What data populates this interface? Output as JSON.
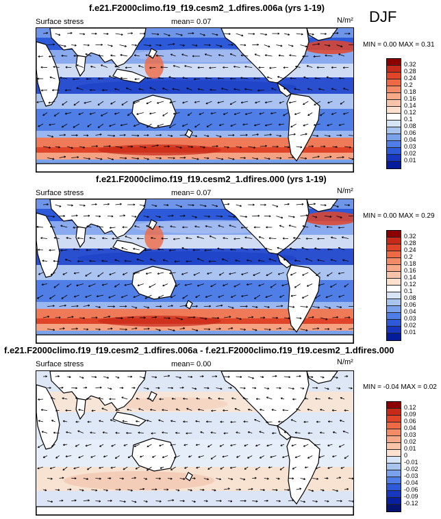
{
  "season": "DJF",
  "panels": [
    {
      "id": "a",
      "title": "f.e21.F2000climo.f19_f19.cesm2_1.dfires.006a (yrs 1-19)",
      "field": "Surface stress",
      "mean_label": "mean=",
      "mean": "0.07",
      "units": "N/m²",
      "min_label": "MIN =",
      "min": "0.00",
      "max_label": "MAX =",
      "max": "0.31",
      "levels": [
        "0.32",
        "0.28",
        "0.24",
        "0.2",
        "0.18",
        "0.16",
        "0.14",
        "0.12",
        "0.1",
        "0.08",
        "0.06",
        "0.04",
        "0.03",
        "0.02",
        "0.01"
      ],
      "colors": [
        "#8b0000",
        "#c72a18",
        "#e0452a",
        "#ee6a45",
        "#f38b66",
        "#f7a988",
        "#fac4aa",
        "#fde0cd",
        "#ffffff",
        "#d7e4f5",
        "#a8c3ee",
        "#7aa2ea",
        "#4f7fe6",
        "#2d5ad8",
        "#1737c0",
        "#051c9a"
      ]
    },
    {
      "id": "b",
      "title": "f.e21.F2000climo.f19_f19.cesm2_1.dfires.000 (yrs 1-19)",
      "field": "Surface stress",
      "mean_label": "mean=",
      "mean": "0.07",
      "units": "N/m²",
      "min_label": "MIN =",
      "min": "0.00",
      "max_label": "MAX =",
      "max": "0.29",
      "levels": [
        "0.32",
        "0.28",
        "0.24",
        "0.2",
        "0.18",
        "0.16",
        "0.14",
        "0.12",
        "0.1",
        "0.08",
        "0.06",
        "0.04",
        "0.03",
        "0.02",
        "0.01"
      ],
      "colors": [
        "#8b0000",
        "#c72a18",
        "#e0452a",
        "#ee6a45",
        "#f38b66",
        "#f7a988",
        "#fac4aa",
        "#fde0cd",
        "#ffffff",
        "#d7e4f5",
        "#a8c3ee",
        "#7aa2ea",
        "#4f7fe6",
        "#2d5ad8",
        "#1737c0",
        "#051c9a"
      ]
    },
    {
      "id": "diff",
      "title": "f.e21.F2000climo.f19_f19.cesm2_1.dfires.006a - f.e21.F2000climo.f19_f19.cesm2_1.dfires.000",
      "field": "Surface stress",
      "mean_label": "mean=",
      "mean": "0.00",
      "units": "N/m²",
      "min_label": "MIN =",
      "min": "-0.04",
      "max_label": "MAX =",
      "max": "0.02",
      "levels": [
        "0.12",
        "0.09",
        "0.06",
        "0.04",
        "0.03",
        "0.02",
        "0.01",
        "0",
        "-0.01",
        "-0.02",
        "-0.03",
        "-0.04",
        "-0.06",
        "-0.09",
        "-0.12"
      ],
      "colors": [
        "#8b0000",
        "#c72a18",
        "#e0452a",
        "#ee6a45",
        "#f38b66",
        "#f7a988",
        "#fac4aa",
        "#fde0cd",
        "#d7e4f5",
        "#a8c3ee",
        "#7aa2ea",
        "#4f7fe6",
        "#2d5ad8",
        "#1737c0",
        "#0a1f9e",
        "#051470"
      ]
    }
  ]
}
